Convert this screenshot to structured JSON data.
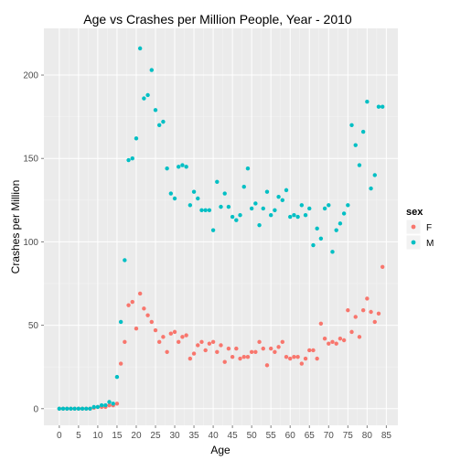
{
  "chart_data": {
    "type": "scatter",
    "title": "Age vs Crashes per Million People, Year -  2010",
    "xlabel": "Age",
    "ylabel": "Crashes per Million",
    "xlim": [
      -4,
      88
    ],
    "ylim": [
      -10,
      228
    ],
    "x_ticks": [
      0,
      5,
      10,
      15,
      20,
      25,
      30,
      35,
      40,
      45,
      50,
      55,
      60,
      65,
      70,
      75,
      80,
      85
    ],
    "y_ticks": [
      0,
      50,
      100,
      150,
      200
    ],
    "grid": true,
    "legend": {
      "title": "sex",
      "placement": "right",
      "entries": [
        "F",
        "M"
      ]
    },
    "colors": {
      "F": "#F8766D",
      "M": "#00BFC4",
      "panel": "#EBEBEB",
      "grid": "#FFFFFF"
    },
    "series": [
      {
        "name": "F",
        "x": [
          0,
          1,
          2,
          3,
          4,
          5,
          6,
          7,
          8,
          9,
          10,
          11,
          12,
          13,
          14,
          15,
          16,
          17,
          18,
          19,
          20,
          21,
          22,
          23,
          24,
          25,
          26,
          27,
          28,
          29,
          30,
          31,
          32,
          33,
          34,
          35,
          36,
          37,
          38,
          39,
          40,
          41,
          42,
          43,
          44,
          45,
          46,
          47,
          48,
          49,
          50,
          51,
          52,
          53,
          54,
          55,
          56,
          57,
          58,
          59,
          60,
          61,
          62,
          63,
          64,
          65,
          66,
          67,
          68,
          69,
          70,
          71,
          72,
          73,
          74,
          75,
          76,
          77,
          78,
          79,
          80,
          81,
          82,
          83,
          84
        ],
        "y": [
          0,
          0,
          0,
          0,
          0,
          0,
          0,
          0,
          0,
          0.5,
          1,
          1,
          1,
          2,
          2,
          3,
          27,
          40,
          62,
          64,
          48,
          69,
          60,
          56,
          52,
          47,
          40,
          43,
          34,
          45,
          46,
          40,
          43,
          44,
          30,
          33,
          38,
          40,
          35,
          39,
          40,
          34,
          38,
          28,
          36,
          31,
          36,
          30,
          31,
          31,
          34,
          34,
          40,
          36,
          26,
          36,
          34,
          37,
          40,
          31,
          30,
          31,
          31,
          27,
          30,
          35,
          35,
          30,
          51,
          42,
          39,
          40,
          39,
          42,
          41,
          59,
          46,
          55,
          43,
          59,
          66,
          58,
          52,
          57,
          85
        ]
      },
      {
        "name": "M",
        "x": [
          0,
          1,
          2,
          3,
          4,
          5,
          6,
          7,
          8,
          9,
          10,
          11,
          12,
          13,
          14,
          15,
          16,
          17,
          18,
          19,
          20,
          21,
          22,
          23,
          24,
          25,
          26,
          27,
          28,
          29,
          30,
          31,
          32,
          33,
          34,
          35,
          36,
          37,
          38,
          39,
          40,
          41,
          42,
          43,
          44,
          45,
          46,
          47,
          48,
          49,
          50,
          51,
          52,
          53,
          54,
          55,
          56,
          57,
          58,
          59,
          60,
          61,
          62,
          63,
          64,
          65,
          66,
          67,
          68,
          69,
          70,
          71,
          72,
          73,
          74,
          75,
          76,
          77,
          78,
          79,
          80,
          81,
          82,
          83,
          84
        ],
        "y": [
          0,
          0,
          0,
          0,
          0,
          0,
          0,
          0,
          0,
          1,
          1,
          2,
          2,
          4,
          3,
          19,
          52,
          89,
          149,
          150,
          162,
          216,
          186,
          188,
          203,
          179,
          170,
          172,
          144,
          129,
          126,
          145,
          146,
          145,
          122,
          130,
          126,
          119,
          119,
          119,
          107,
          136,
          121,
          129,
          121,
          115,
          113,
          116,
          133,
          144,
          120,
          123,
          110,
          120,
          130,
          116,
          119,
          127,
          125,
          131,
          115,
          116,
          115,
          122,
          116,
          120,
          98,
          108,
          102,
          120,
          122,
          94,
          107,
          111,
          117,
          122,
          170,
          158,
          146,
          166,
          184,
          132,
          140,
          181,
          181
        ]
      }
    ]
  }
}
